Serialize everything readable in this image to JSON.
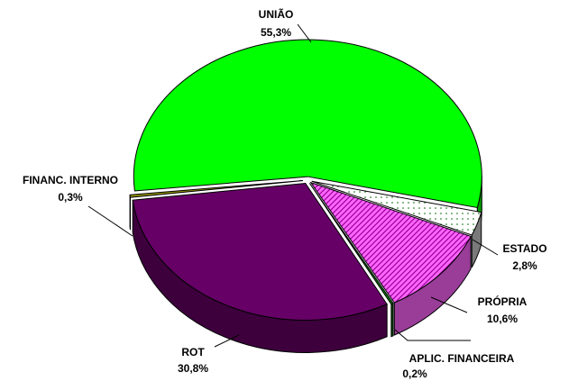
{
  "chart_data": {
    "type": "pie3d",
    "categories": [
      "UNIÃO",
      "ESTADO",
      "PRÓPRIA",
      "APLIC. FINANCEIRA",
      "ROT",
      "FINANC. INTERNO"
    ],
    "values": [
      55.3,
      2.8,
      10.6,
      0.2,
      30.8,
      0.3
    ],
    "value_labels": [
      "55,3%",
      "2,8%",
      "10,6%",
      "0,2%",
      "30,8%",
      "0,3%"
    ],
    "colors": [
      "#00ff00",
      "#ffffff",
      "#ff66ff",
      "#008000",
      "#660066",
      "#999900"
    ],
    "patterns": [
      null,
      "dots",
      "hatch",
      null,
      null,
      null
    ]
  }
}
